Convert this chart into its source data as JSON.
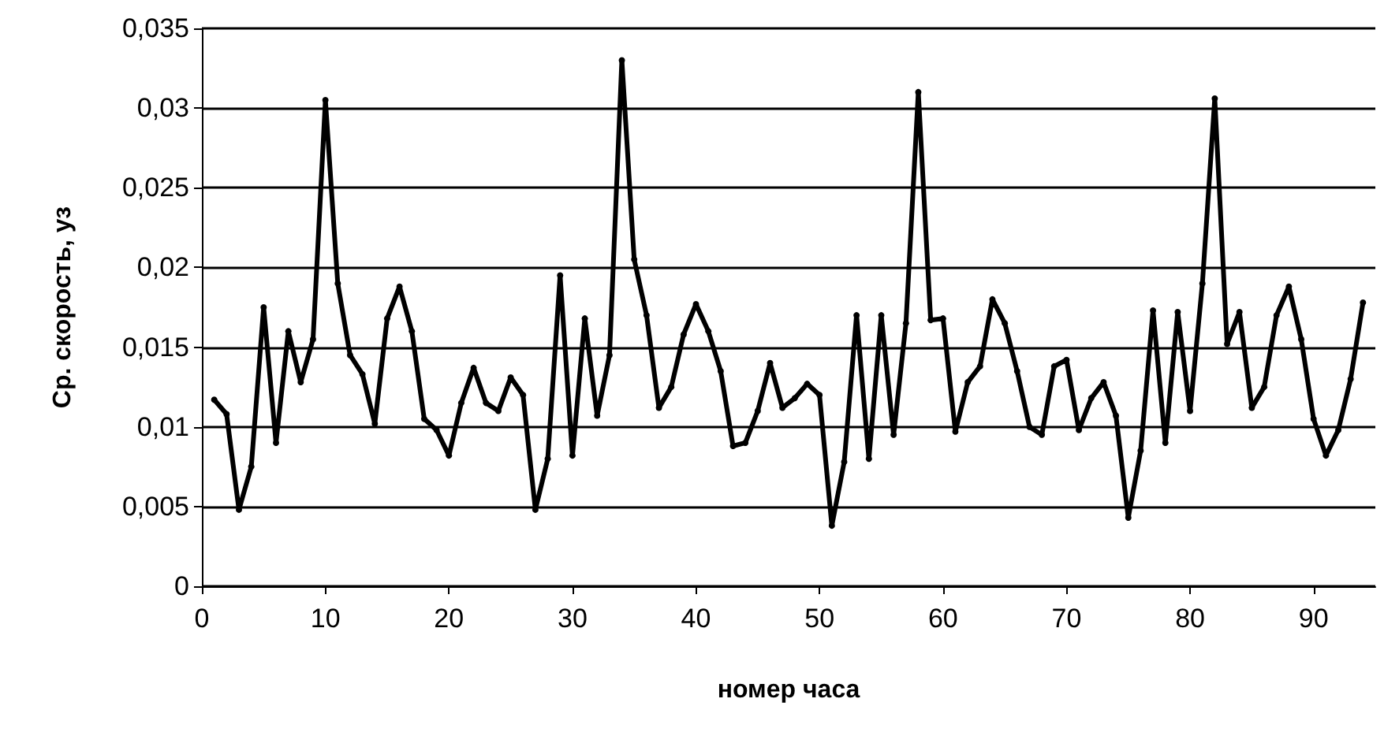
{
  "chart_data": {
    "type": "line",
    "xlabel": "номер часа",
    "ylabel": "Ср. скорость, уз",
    "x": [
      1,
      2,
      3,
      4,
      5,
      6,
      7,
      8,
      9,
      10,
      11,
      12,
      13,
      14,
      15,
      16,
      17,
      18,
      19,
      20,
      21,
      22,
      23,
      24,
      25,
      26,
      27,
      28,
      29,
      30,
      31,
      32,
      33,
      34,
      35,
      36,
      37,
      38,
      39,
      40,
      41,
      42,
      43,
      44,
      45,
      46,
      47,
      48,
      49,
      50,
      51,
      52,
      53,
      54,
      55,
      56,
      57,
      58,
      59,
      60,
      61,
      62,
      63,
      64,
      65,
      66,
      67,
      68,
      69,
      70,
      71,
      72,
      73,
      74,
      75,
      76,
      77,
      78,
      79,
      80,
      81,
      82,
      83,
      84,
      85,
      86,
      87,
      88,
      89,
      90,
      91,
      92,
      93,
      94
    ],
    "series": [
      {
        "color": "#000000",
        "values": [
          0.0117,
          0.0108,
          0.0048,
          0.0075,
          0.0175,
          0.009,
          0.016,
          0.0128,
          0.0155,
          0.0305,
          0.019,
          0.0145,
          0.0133,
          0.0102,
          0.0168,
          0.0188,
          0.016,
          0.0105,
          0.0098,
          0.0082,
          0.0115,
          0.0137,
          0.0115,
          0.011,
          0.0131,
          0.012,
          0.0048,
          0.008,
          0.0195,
          0.0082,
          0.0168,
          0.0107,
          0.0145,
          0.033,
          0.0205,
          0.017,
          0.0112,
          0.0125,
          0.0158,
          0.0177,
          0.016,
          0.0135,
          0.0088,
          0.009,
          0.011,
          0.014,
          0.0112,
          0.0118,
          0.0127,
          0.012,
          0.0038,
          0.0078,
          0.017,
          0.008,
          0.017,
          0.0095,
          0.0165,
          0.031,
          0.0167,
          0.0168,
          0.0097,
          0.0128,
          0.0138,
          0.018,
          0.0165,
          0.0135,
          0.01,
          0.0095,
          0.0138,
          0.0142,
          0.0098,
          0.0118,
          0.0128,
          0.0107,
          0.0043,
          0.0085,
          0.0173,
          0.009,
          0.0172,
          0.011,
          0.019,
          0.0306,
          0.0152,
          0.0172,
          0.0112,
          0.0125,
          0.017,
          0.0188,
          0.0155,
          0.0105,
          0.0082,
          0.0098,
          0.013,
          0.0178
        ]
      }
    ],
    "xlim": [
      0,
      95
    ],
    "xticks": [
      0,
      10,
      20,
      30,
      40,
      50,
      60,
      70,
      80,
      90
    ],
    "ylim": [
      0,
      0.035
    ],
    "yticks": [
      {
        "value": 0,
        "label": "0"
      },
      {
        "value": 0.005,
        "label": "0,005"
      },
      {
        "value": 0.01,
        "label": "0,01"
      },
      {
        "value": 0.015,
        "label": "0,015"
      },
      {
        "value": 0.02,
        "label": "0,02"
      },
      {
        "value": 0.025,
        "label": "0,025"
      },
      {
        "value": 0.03,
        "label": "0,03"
      },
      {
        "value": 0.035,
        "label": "0,035"
      }
    ],
    "grid": "y",
    "marker": "circle",
    "line_style": "solid"
  }
}
